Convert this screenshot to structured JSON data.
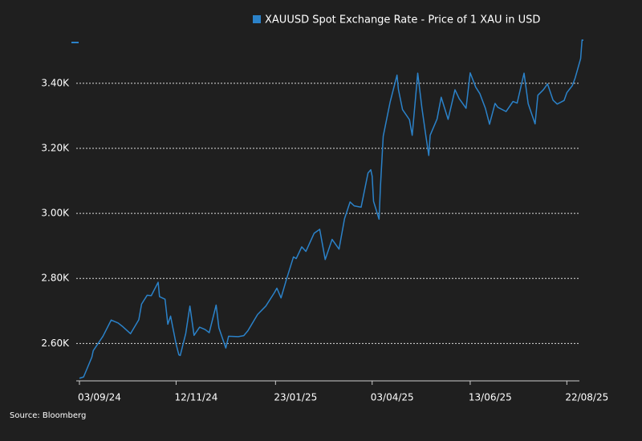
{
  "chart_data": {
    "type": "line",
    "legend": "XAUUSD Spot Exchange Rate - Price of 1 XAU in USD",
    "source": "Source: Bloomberg",
    "legend_position": "top",
    "grid": true,
    "x": [
      "03/09/24",
      "06/09/24",
      "12/09/24",
      "13/09/24",
      "20/09/24",
      "26/09/24",
      "01/10/24",
      "04/10/24",
      "10/10/24",
      "16/10/24",
      "18/10/24",
      "22/10/24",
      "25/10/24",
      "30/10/24",
      "31/10/24",
      "04/11/24",
      "06/11/24",
      "08/11/24",
      "12/11/24",
      "14/11/24",
      "15/11/24",
      "19/11/24",
      "22/11/24",
      "25/11/24",
      "29/11/24",
      "03/12/24",
      "06/12/24",
      "11/12/24",
      "13/12/24",
      "18/12/24",
      "20/12/24",
      "27/12/24",
      "31/12/24",
      "03/01/25",
      "10/01/25",
      "16/01/25",
      "22/01/25",
      "24/01/25",
      "27/01/25",
      "31/01/25",
      "05/02/25",
      "07/02/25",
      "11/02/25",
      "14/02/25",
      "20/02/25",
      "24/02/25",
      "28/02/25",
      "05/03/25",
      "10/03/25",
      "14/03/25",
      "18/03/25",
      "21/03/25",
      "26/03/25",
      "31/03/25",
      "02/04/25",
      "03/04/25",
      "04/04/25",
      "08/04/25",
      "09/04/25",
      "11/04/25",
      "16/04/25",
      "21/04/25",
      "22/04/25",
      "25/04/25",
      "30/04/25",
      "02/05/25",
      "06/05/25",
      "09/05/25",
      "12/05/25",
      "14/05/25",
      "15/05/25",
      "20/05/25",
      "23/05/25",
      "28/05/25",
      "02/06/25",
      "05/06/25",
      "10/06/25",
      "13/06/25",
      "17/06/25",
      "20/06/25",
      "24/06/25",
      "27/06/25",
      "01/07/25",
      "03/07/25",
      "09/07/25",
      "14/07/25",
      "17/07/25",
      "22/07/25",
      "25/07/25",
      "30/07/25",
      "01/08/25",
      "05/08/25",
      "08/08/25",
      "12/08/25",
      "15/08/25",
      "20/08/25",
      "22/08/25",
      "26/08/25",
      "28/08/25",
      "01/09/25",
      "02/09/25",
      "03/09/25"
    ],
    "series": [
      {
        "name": "XAUUSD Spot Exchange Rate - Price of 1 XAU in USD",
        "color": "#2b82c9",
        "values": [
          2493,
          2497,
          2558,
          2578,
          2622,
          2672,
          2663,
          2653,
          2630,
          2673,
          2721,
          2748,
          2747,
          2788,
          2744,
          2736,
          2659,
          2684,
          2598,
          2565,
          2563,
          2631,
          2715,
          2625,
          2650,
          2643,
          2633,
          2718,
          2648,
          2586,
          2622,
          2621,
          2624,
          2639,
          2689,
          2715,
          2755,
          2770,
          2740,
          2798,
          2866,
          2861,
          2897,
          2883,
          2939,
          2951,
          2858,
          2920,
          2890,
          2984,
          3035,
          3023,
          3019,
          3124,
          3134,
          3114,
          3037,
          2982,
          3082,
          3237,
          3342,
          3425,
          3381,
          3319,
          3288,
          3240,
          3431,
          3325,
          3235,
          3178,
          3240,
          3290,
          3357,
          3289,
          3380,
          3353,
          3323,
          3432,
          3388,
          3368,
          3323,
          3274,
          3338,
          3326,
          3313,
          3344,
          3339,
          3431,
          3337,
          3275,
          3363,
          3380,
          3398,
          3348,
          3336,
          3347,
          3371,
          3393,
          3416,
          3476,
          3533,
          3532
        ]
      }
    ],
    "xlim": [
      "03/09/24",
      "03/09/25"
    ],
    "xticks": [
      "03/09/24",
      "12/11/24",
      "23/01/25",
      "03/04/25",
      "13/06/25",
      "22/08/25"
    ],
    "ylim": [
      2485,
      3545
    ],
    "yticks": [
      {
        "value": 2600,
        "label": "2.60K"
      },
      {
        "value": 2800,
        "label": "2.80K"
      },
      {
        "value": 3000,
        "label": "3.00K"
      },
      {
        "value": 3200,
        "label": "3.20K"
      },
      {
        "value": 3400,
        "label": "3.40K"
      }
    ]
  }
}
